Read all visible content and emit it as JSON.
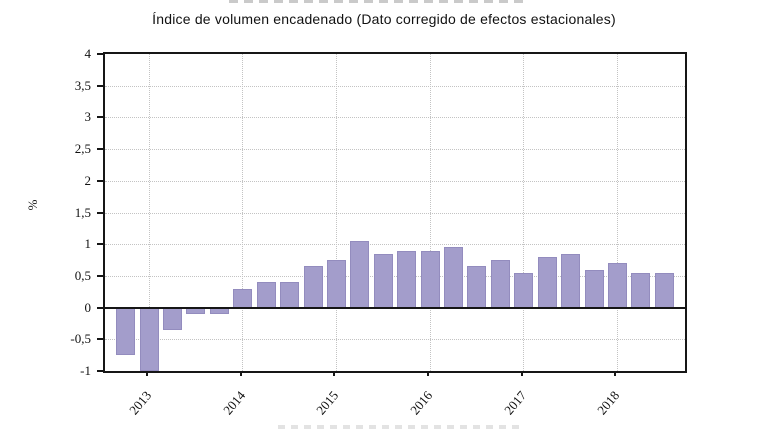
{
  "figure": {
    "note_top_edge": "partially clipped title line at top edge (unreadable)",
    "note_bottom_edge": "partially clipped caption line at bottom edge (unreadable)"
  },
  "chart_data": {
    "type": "bar",
    "title": "Índice de volumen encadenado (Dato corregido de efectos estacionales)",
    "xlabel": "",
    "ylabel": "%",
    "ylim": [
      -1,
      4
    ],
    "ytick_step": 0.5,
    "ytick_values": [
      4,
      3.5,
      3,
      2.5,
      2,
      1.5,
      1,
      0.5,
      0,
      -0.5,
      -1
    ],
    "ytick_labels": [
      "4",
      "3,5",
      "3",
      "2,5",
      "2",
      "1,5",
      "1",
      "0,5",
      "0",
      "-0,5",
      "-1"
    ],
    "x_year_labels": [
      "2013",
      "2014",
      "2015",
      "2016",
      "2017",
      "2018"
    ],
    "year_tick_bar_indices": [
      1,
      5,
      9,
      13,
      17,
      21
    ],
    "values": [
      -0.75,
      -1.0,
      -0.35,
      -0.1,
      -0.1,
      0.3,
      0.4,
      0.4,
      0.65,
      0.75,
      1.05,
      0.85,
      0.9,
      0.9,
      0.95,
      0.65,
      0.75,
      0.55,
      0.8,
      0.85,
      0.6,
      0.7,
      0.55,
      0.55
    ],
    "legend": "none",
    "grid": "dotted horizontal every 0.5; dotted vertical at year ticks",
    "bar_color": "#a39dcb",
    "frame_color": "#161616",
    "zero_line": true
  }
}
